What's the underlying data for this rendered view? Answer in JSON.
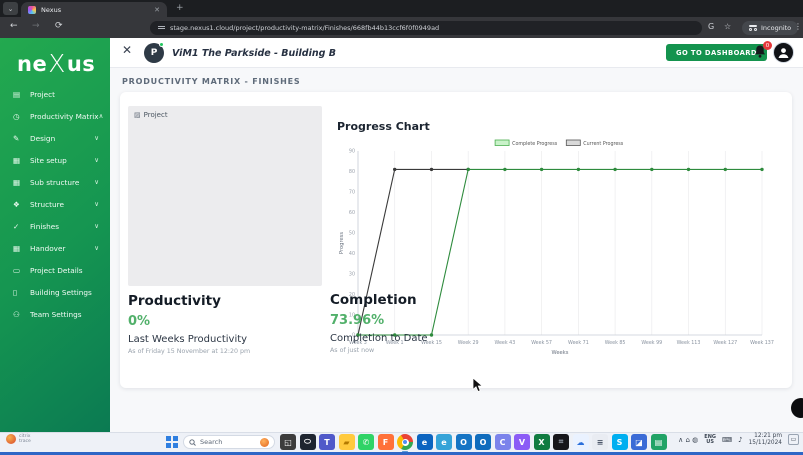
{
  "browser": {
    "tab_title": "Nexus",
    "minibtn_glyph": "⌄",
    "close_tab_glyph": "✕",
    "new_tab_glyph": "+",
    "back_glyph": "←",
    "forward_glyph": "→",
    "reload_glyph": "⟳",
    "url": "stage.nexus1.cloud/project/productivity-matrix/Finishes/668fb44b13ccf6f0f0949ad",
    "translate_glyph": "G",
    "star_glyph": "☆",
    "incognito_label": "Incognito",
    "menu_glyph": "⋮"
  },
  "sidebar": {
    "logo": {
      "pre": "ne",
      "x": "X",
      "suf": "us"
    },
    "items": [
      {
        "label": "Project",
        "glyph": "▤",
        "chevron": ""
      },
      {
        "label": "Productivity Matrix",
        "glyph": "◷",
        "chevron": "∧"
      },
      {
        "label": "Design",
        "glyph": "✎",
        "chevron": "∨"
      },
      {
        "label": "Site setup",
        "glyph": "▦",
        "chevron": "∨"
      },
      {
        "label": "Sub structure",
        "glyph": "▦",
        "chevron": "∨"
      },
      {
        "label": "Structure",
        "glyph": "❖",
        "chevron": "∨"
      },
      {
        "label": "Finishes",
        "glyph": "✓",
        "chevron": "∨"
      },
      {
        "label": "Handover",
        "glyph": "▦",
        "chevron": "∨"
      },
      {
        "label": "Project Details",
        "glyph": "▭",
        "chevron": ""
      },
      {
        "label": "Building Settings",
        "glyph": "▯",
        "chevron": ""
      },
      {
        "label": "Team Settings",
        "glyph": "⚇",
        "chevron": ""
      }
    ]
  },
  "header": {
    "close_glyph": "✕",
    "project_initial": "P",
    "title": "ViM1 The Parkside - Building B",
    "dashboard_button": "GO TO DASHBOARD",
    "notification_count": "0"
  },
  "page": {
    "heading": "PRODUCTIVITY MATRIX - FINISHES",
    "image_alt": "Project",
    "broken_image_glyph": "▨",
    "stats": {
      "productivity": {
        "title": "Productivity",
        "value": "0%",
        "label": "Last Weeks Productivity",
        "as_of": "As of Friday 15 November at 12:20 pm"
      },
      "completion": {
        "title": "Completion",
        "value": "73.96%",
        "label": "Completion to Date",
        "as_of": "As of just now"
      }
    }
  },
  "chart_data": {
    "type": "line",
    "title": "Progress Chart",
    "xlabel": "Weeks",
    "ylabel": "Progress",
    "ylim": [
      0,
      90
    ],
    "yticks": [
      0,
      10,
      20,
      30,
      40,
      50,
      60,
      70,
      80,
      90
    ],
    "categories": [
      "Week 3",
      "Week 1",
      "Week 15",
      "Week 29",
      "Week 43",
      "Week 57",
      "Week 71",
      "Week 85",
      "Week 99",
      "Week 113",
      "Week 127",
      "Week 137"
    ],
    "grid": "vertical",
    "legend_position": "top",
    "series": [
      {
        "name": "Complete Progress",
        "line_color": "#2e8b3d",
        "swatch_fill": "#c9f2c9",
        "swatch_stroke": "#4caf50",
        "values": [
          0,
          0,
          0,
          81,
          81,
          81,
          81,
          81,
          81,
          81,
          81,
          81
        ]
      },
      {
        "name": "Current Progress",
        "line_color": "#3a3a3a",
        "swatch_fill": "#d9d9d9",
        "swatch_stroke": "#555555",
        "values": [
          0,
          81,
          81,
          81,
          null,
          null,
          null,
          null,
          null,
          null,
          null,
          null
        ]
      }
    ]
  },
  "taskbar": {
    "citrix_line1": "citrix",
    "citrix_line2": "trace",
    "search_placeholder": "Search",
    "icons": [
      {
        "name": "task-view-icon",
        "glyph": "◱",
        "bg": "#3c3c3c",
        "fg": "#ffffff"
      },
      {
        "name": "dark-app-icon",
        "glyph": "⬭",
        "bg": "#1e2530",
        "fg": "#ffffff"
      },
      {
        "name": "teams-icon",
        "glyph": "T",
        "bg": "#5059c9",
        "fg": "#ffffff"
      },
      {
        "name": "file-explorer-icon",
        "glyph": "▰",
        "bg": "#ffca3e",
        "fg": "#b37a00"
      },
      {
        "name": "whatsapp-icon",
        "glyph": "✆",
        "bg": "#2fd366",
        "fg": "#ffffff"
      },
      {
        "name": "firefox-icon",
        "glyph": "F",
        "bg": "#ff7139",
        "fg": "#ffffff"
      },
      {
        "name": "chrome-icon",
        "glyph": "",
        "bg": "chrome",
        "fg": ""
      },
      {
        "name": "edge-icon",
        "glyph": "e",
        "bg": "#0b64c0",
        "fg": "#ffffff"
      },
      {
        "name": "edge-beta-icon",
        "glyph": "e",
        "bg": "#35a3d8",
        "fg": "#ffffff"
      },
      {
        "name": "outlook-new-icon",
        "glyph": "O",
        "bg": "#1574c4",
        "fg": "#ffffff"
      },
      {
        "name": "outlook-icon",
        "glyph": "O",
        "bg": "#0f6cbd",
        "fg": "#ffffff"
      },
      {
        "name": "teams-call-icon",
        "glyph": "C",
        "bg": "#7b83eb",
        "fg": "#ffffff"
      },
      {
        "name": "volume-app-icon",
        "glyph": "V",
        "bg": "#8b5cf6",
        "fg": "#ffffff"
      },
      {
        "name": "excel-icon",
        "glyph": "X",
        "bg": "#107c41",
        "fg": "#ffffff"
      },
      {
        "name": "black-app-icon",
        "glyph": "⌗",
        "bg": "#17171b",
        "fg": "#99a2ad"
      },
      {
        "name": "cloud-app-icon",
        "glyph": "☁",
        "bg": "#eaf2ff",
        "fg": "#2a6fdb"
      },
      {
        "name": "notes-app-icon",
        "glyph": "≡",
        "bg": "#e9ecf2",
        "fg": "#4a5568"
      },
      {
        "name": "skype-icon",
        "glyph": "S",
        "bg": "#00aff0",
        "fg": "#ffffff"
      },
      {
        "name": "photos-app-icon",
        "glyph": "◪",
        "bg": "#3b6bd6",
        "fg": "#ffffff"
      },
      {
        "name": "green-doc-icon",
        "glyph": "▤",
        "bg": "#21a366",
        "fg": "#ffffff"
      }
    ],
    "tray_glyphs": [
      {
        "name": "hidden-icons-chevron",
        "glyph": "∧"
      },
      {
        "name": "tray-app-icon",
        "glyph": "⌂"
      },
      {
        "name": "tray-status-icon",
        "glyph": "◍"
      }
    ],
    "lang_line1": "ENG",
    "lang_line2": "US",
    "keyboard_glyph": "⌨",
    "sound_glyph": "♪",
    "time": "12:21 pm",
    "date": "15/11/2024",
    "notification_glyph": "▭"
  },
  "colors": {
    "sidebar_top": "#23a94f",
    "sidebar_bottom": "#0b7a52",
    "accent_green": "#14934e",
    "stat_green": "#51b06a",
    "chart_green": "#2e8b3d",
    "chart_dark": "#3a3a3a",
    "badge_red": "#e5383b"
  }
}
